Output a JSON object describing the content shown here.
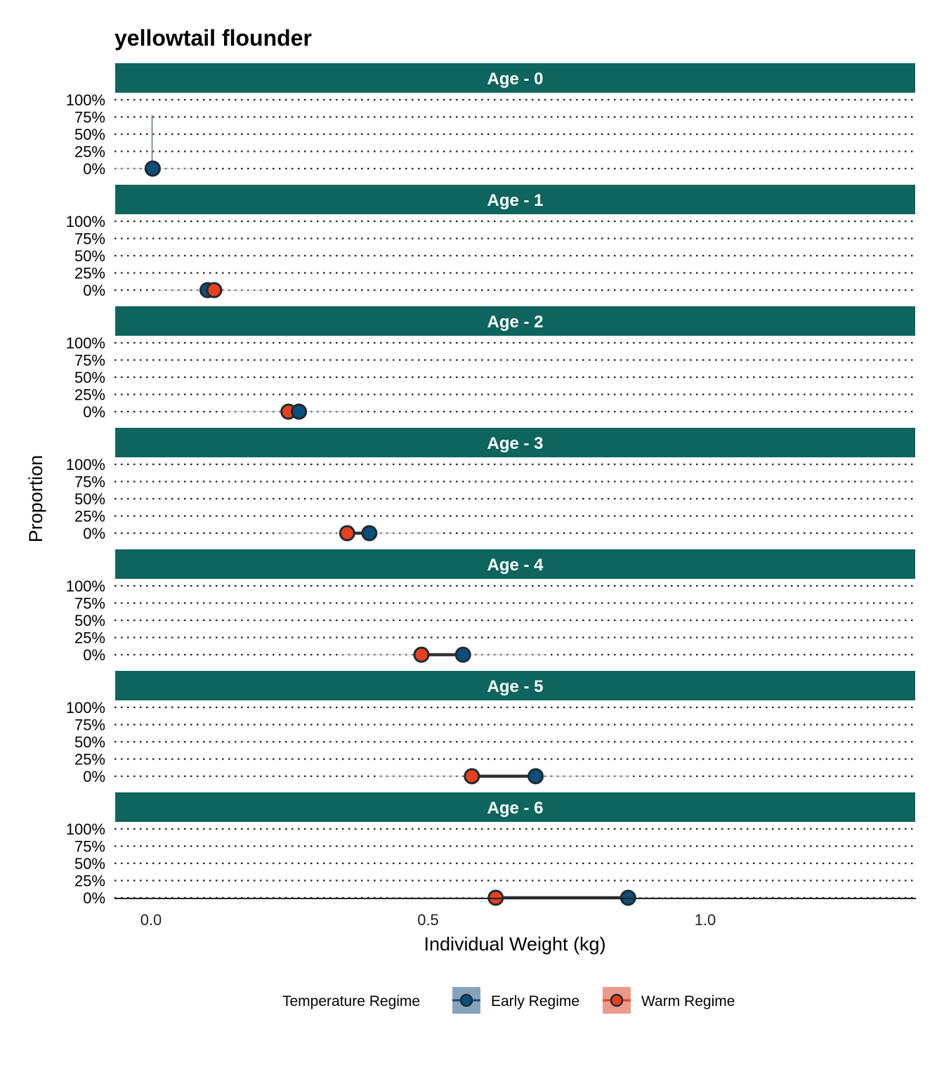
{
  "chart_data": {
    "type": "scatter",
    "title": "yellowtail flounder",
    "xlabel": "Individual Weight (kg)",
    "ylabel": "Proportion",
    "xlim": [
      -0.07,
      1.38
    ],
    "ylim": [
      0,
      1
    ],
    "x_ticks": [
      0.0,
      0.5,
      1.0
    ],
    "x_tick_labels": [
      "0.0",
      "0.5",
      "1.0"
    ],
    "y_tick_labels": [
      "100%",
      "75%",
      "50%",
      "25%",
      "0%"
    ],
    "y_tick_values": [
      1.0,
      0.75,
      0.5,
      0.25,
      0.0
    ],
    "grid": "dotted-horizontal",
    "legend": {
      "title": "Temperature Regime",
      "position": "bottom",
      "entries": [
        {
          "name": "Early Regime",
          "color": "#0b4f7c",
          "fill": "#87a3bb"
        },
        {
          "name": "Warm Regime",
          "color": "#e8401c",
          "fill": "#eb9a8c"
        }
      ]
    },
    "colors": {
      "strip": "#0e655e",
      "early": "#0b4f7c",
      "warm": "#e8401c",
      "segment": "#333333"
    },
    "facets": [
      {
        "label": "Age - 0",
        "early": 0.003,
        "warm": 0.003
      },
      {
        "label": "Age - 1",
        "early": 0.102,
        "warm": 0.114
      },
      {
        "label": "Age - 2",
        "early": 0.267,
        "warm": 0.248
      },
      {
        "label": "Age - 3",
        "early": 0.394,
        "warm": 0.354
      },
      {
        "label": "Age - 4",
        "early": 0.563,
        "warm": 0.488
      },
      {
        "label": "Age - 5",
        "early": 0.694,
        "warm": 0.579
      },
      {
        "label": "Age - 6",
        "early": 0.861,
        "warm": 0.622
      }
    ]
  }
}
